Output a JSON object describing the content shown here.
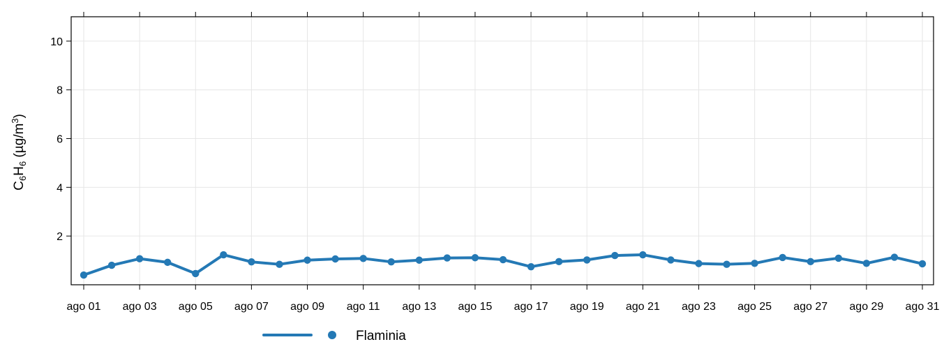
{
  "chart_data": {
    "type": "line",
    "ylabel": {
      "prefix": "C",
      "sub1": "6",
      "mid": "H",
      "sub2": "6",
      "units_open": " (µg/m",
      "units_sup": "3",
      "units_close": ")"
    },
    "xlabel": "",
    "ylim": [
      0.0,
      11.0
    ],
    "yticks": [
      {
        "value": 2,
        "label": "2"
      },
      {
        "value": 4,
        "label": "4"
      },
      {
        "value": 6,
        "label": "6"
      },
      {
        "value": 8,
        "label": "8"
      },
      {
        "value": 10,
        "label": "10"
      }
    ],
    "x": [
      "2023-08-01",
      "2023-08-02",
      "2023-08-03",
      "2023-08-04",
      "2023-08-05",
      "2023-08-06",
      "2023-08-07",
      "2023-08-08",
      "2023-08-09",
      "2023-08-10",
      "2023-08-11",
      "2023-08-12",
      "2023-08-13",
      "2023-08-14",
      "2023-08-15",
      "2023-08-16",
      "2023-08-17",
      "2023-08-18",
      "2023-08-19",
      "2023-08-20",
      "2023-08-21",
      "2023-08-22",
      "2023-08-23",
      "2023-08-24",
      "2023-08-25",
      "2023-08-26",
      "2023-08-27",
      "2023-08-28",
      "2023-08-29",
      "2023-08-30",
      "2023-08-31"
    ],
    "xticks": [
      {
        "value": "2023-08-01",
        "label": "ago 01"
      },
      {
        "value": "2023-08-03",
        "label": "ago 03"
      },
      {
        "value": "2023-08-05",
        "label": "ago 05"
      },
      {
        "value": "2023-08-07",
        "label": "ago 07"
      },
      {
        "value": "2023-08-09",
        "label": "ago 09"
      },
      {
        "value": "2023-08-11",
        "label": "ago 11"
      },
      {
        "value": "2023-08-13",
        "label": "ago 13"
      },
      {
        "value": "2023-08-15",
        "label": "ago 15"
      },
      {
        "value": "2023-08-17",
        "label": "ago 17"
      },
      {
        "value": "2023-08-19",
        "label": "ago 19"
      },
      {
        "value": "2023-08-21",
        "label": "ago 21"
      },
      {
        "value": "2023-08-23",
        "label": "ago 23"
      },
      {
        "value": "2023-08-25",
        "label": "ago 25"
      },
      {
        "value": "2023-08-27",
        "label": "ago 27"
      },
      {
        "value": "2023-08-29",
        "label": "ago 29"
      },
      {
        "value": "2023-08-31",
        "label": "ago 31"
      }
    ],
    "series": [
      {
        "name": "Flaminia",
        "color": "#2479b5",
        "values": [
          0.4,
          0.8,
          1.07,
          0.92,
          0.46,
          1.23,
          0.94,
          0.84,
          1.01,
          1.06,
          1.08,
          0.94,
          1.01,
          1.1,
          1.11,
          1.03,
          0.74,
          0.95,
          1.02,
          1.2,
          1.23,
          1.02,
          0.87,
          0.84,
          0.88,
          1.12,
          0.95,
          1.09,
          0.88,
          1.13,
          0.86
        ]
      }
    ],
    "grid": true,
    "legend_position": "bottom-left"
  }
}
